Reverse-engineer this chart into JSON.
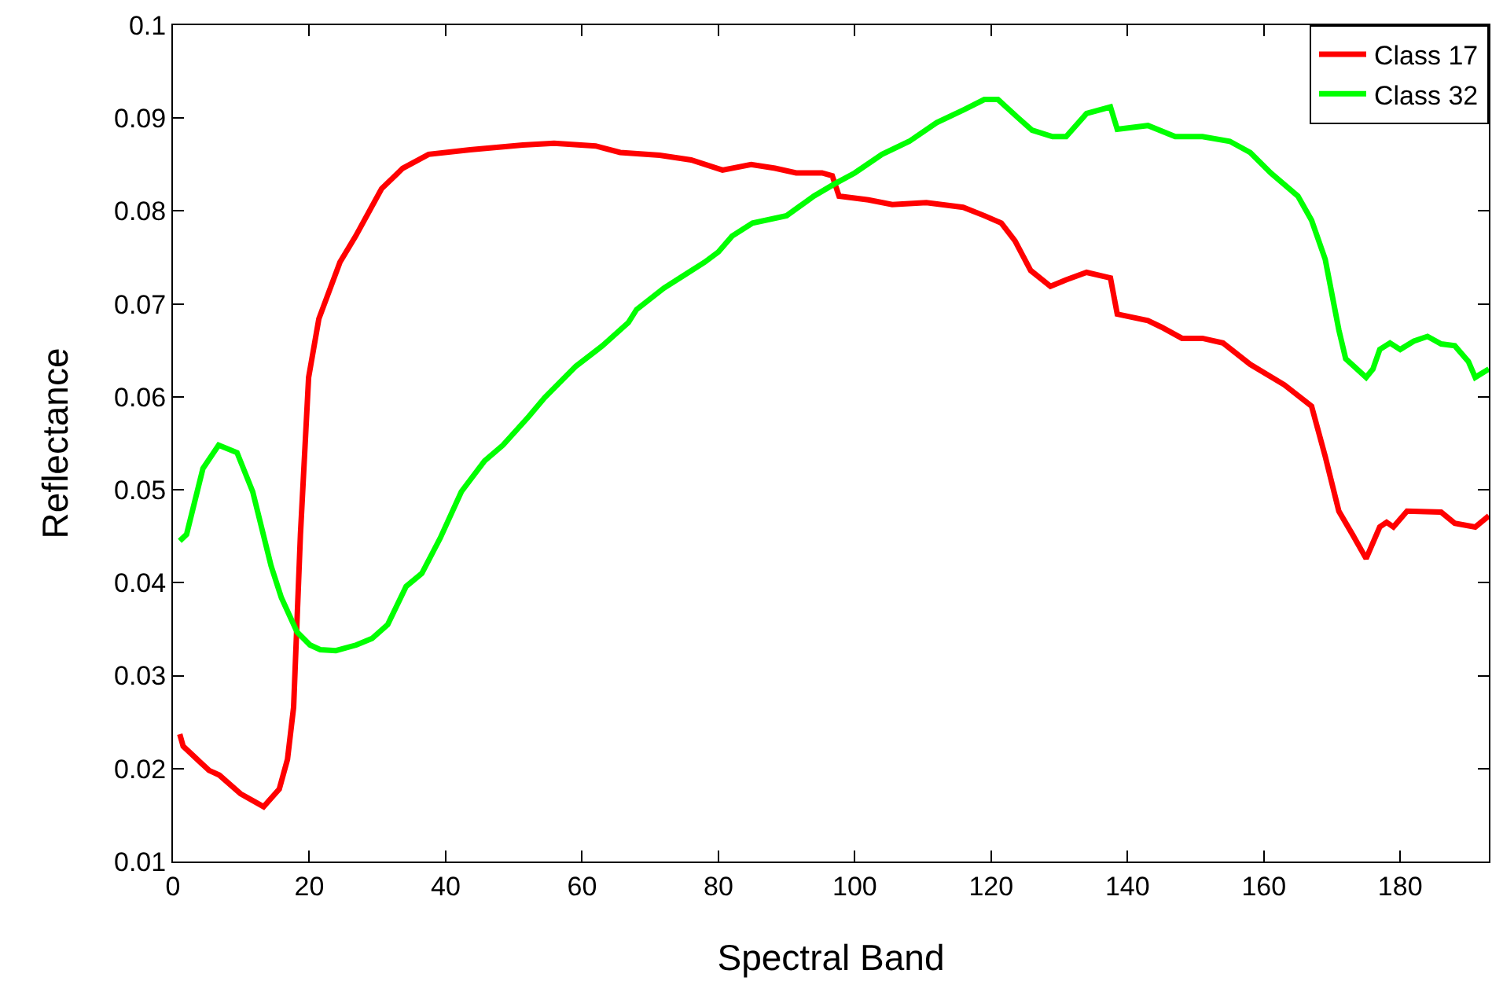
{
  "chart_data": {
    "type": "line",
    "xlabel": "Spectral Band",
    "ylabel": "Reflectance",
    "xlim": [
      0,
      193
    ],
    "ylim": [
      0.01,
      0.1
    ],
    "xticks": [
      0,
      20,
      40,
      60,
      80,
      100,
      120,
      140,
      160,
      180
    ],
    "yticks": [
      0.01,
      0.02,
      0.03,
      0.04,
      0.05,
      0.06,
      0.07,
      0.08,
      0.09,
      0.1
    ],
    "grid": false,
    "legend": "top right",
    "marker": "none",
    "line_style": "solid",
    "series": [
      {
        "name": "Class 17",
        "color": "#ff0000",
        "x": [
          1,
          1.5,
          5.3,
          6.8,
          9.9,
          13.3,
          15.6,
          16.8,
          17.7,
          18.7,
          19.9,
          21.4,
          24.5,
          26.8,
          30.6,
          33.7,
          37.5,
          43.6,
          51.3,
          55.9,
          62,
          65.6,
          71.4,
          76,
          80.6,
          84.8,
          88.3,
          91.4,
          95.2,
          96.7,
          97.7,
          102,
          105.5,
          110.5,
          115.9,
          119,
          121.5,
          123.5,
          125.8,
          128.7,
          131,
          134,
          137.5,
          138.5,
          143,
          145,
          148,
          151,
          154,
          158,
          163,
          167,
          169,
          171,
          173,
          175,
          177,
          178,
          179,
          181,
          186,
          188,
          191,
          193
        ],
        "values": [
          0.0237,
          0.0224,
          0.0198,
          0.0193,
          0.0173,
          0.0159,
          0.0178,
          0.021,
          0.0266,
          0.0452,
          0.0621,
          0.0684,
          0.0745,
          0.0773,
          0.0824,
          0.0846,
          0.0861,
          0.0866,
          0.0871,
          0.0873,
          0.087,
          0.0863,
          0.086,
          0.0855,
          0.0844,
          0.085,
          0.0846,
          0.0841,
          0.0841,
          0.0838,
          0.0816,
          0.0812,
          0.0807,
          0.0809,
          0.0804,
          0.0795,
          0.0787,
          0.0768,
          0.0736,
          0.0719,
          0.0726,
          0.0734,
          0.0728,
          0.0689,
          0.0682,
          0.0675,
          0.0663,
          0.0663,
          0.0658,
          0.0635,
          0.0613,
          0.059,
          0.0536,
          0.0477,
          0.0452,
          0.0426,
          0.046,
          0.0465,
          0.046,
          0.0477,
          0.0476,
          0.0464,
          0.046,
          0.0472
        ]
      },
      {
        "name": "Class 32",
        "color": "#00ff00",
        "x": [
          1,
          2,
          4.4,
          6.7,
          9.4,
          11.7,
          14.4,
          15.9,
          18.2,
          20.1,
          21.6,
          23.9,
          26.9,
          29.2,
          31.5,
          34.2,
          36.5,
          39.2,
          42.3,
          45.7,
          48.4,
          52.2,
          54.5,
          59.1,
          63,
          66.8,
          68,
          72,
          75,
          78,
          80,
          82,
          85,
          90,
          94,
          97,
          100,
          104,
          108,
          112,
          116,
          119,
          121,
          124,
          126,
          129,
          131,
          134,
          137.5,
          138.5,
          143,
          147,
          151,
          155,
          158,
          161,
          165,
          167,
          169,
          171,
          172,
          175,
          176,
          177,
          178.5,
          180,
          182,
          184,
          186,
          188,
          190,
          191,
          193
        ],
        "values": [
          0.0445,
          0.0452,
          0.0523,
          0.0548,
          0.054,
          0.0498,
          0.0418,
          0.0384,
          0.0347,
          0.0333,
          0.0328,
          0.0327,
          0.0333,
          0.034,
          0.0355,
          0.0396,
          0.041,
          0.0448,
          0.0498,
          0.0531,
          0.0548,
          0.0579,
          0.0599,
          0.0633,
          0.0655,
          0.068,
          0.0694,
          0.0717,
          0.0731,
          0.0745,
          0.0756,
          0.0773,
          0.0787,
          0.0795,
          0.0816,
          0.0829,
          0.0841,
          0.0861,
          0.0875,
          0.0895,
          0.0909,
          0.092,
          0.092,
          0.09,
          0.0887,
          0.088,
          0.088,
          0.0905,
          0.0912,
          0.0888,
          0.0892,
          0.088,
          0.088,
          0.0875,
          0.0863,
          0.0841,
          0.0816,
          0.079,
          0.0748,
          0.0672,
          0.0641,
          0.0621,
          0.063,
          0.0651,
          0.0658,
          0.0651,
          0.066,
          0.0665,
          0.0657,
          0.0655,
          0.0638,
          0.0621,
          0.063
        ]
      }
    ]
  }
}
